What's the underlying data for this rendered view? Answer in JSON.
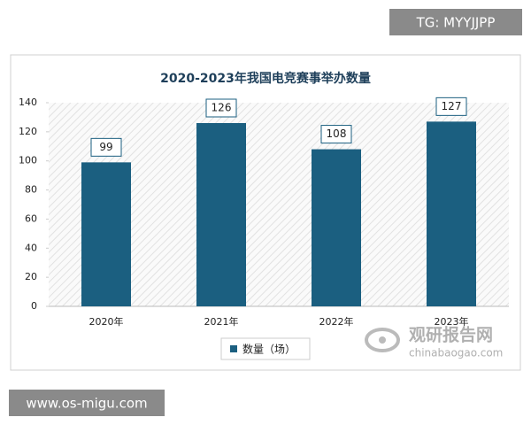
{
  "chart_data": {
    "type": "bar",
    "title": "2020-2023年我国电竞赛事举办数量",
    "categories": [
      "2020年",
      "2021年",
      "2022年",
      "2023年"
    ],
    "series": [
      {
        "name": "数量（场）",
        "color": "#1b5f80",
        "values": [
          99,
          126,
          108,
          127
        ]
      }
    ],
    "ylim": [
      0,
      140
    ],
    "yticks": [
      0,
      20,
      40,
      60,
      80,
      100,
      120,
      140
    ],
    "legend": "bottom"
  },
  "watermarks": {
    "top_right": "TG: MYYJJPP",
    "bottom_left": "www.os-migu.com",
    "logo_name": "观研报告网",
    "logo_url": "chinabaogao.com"
  }
}
